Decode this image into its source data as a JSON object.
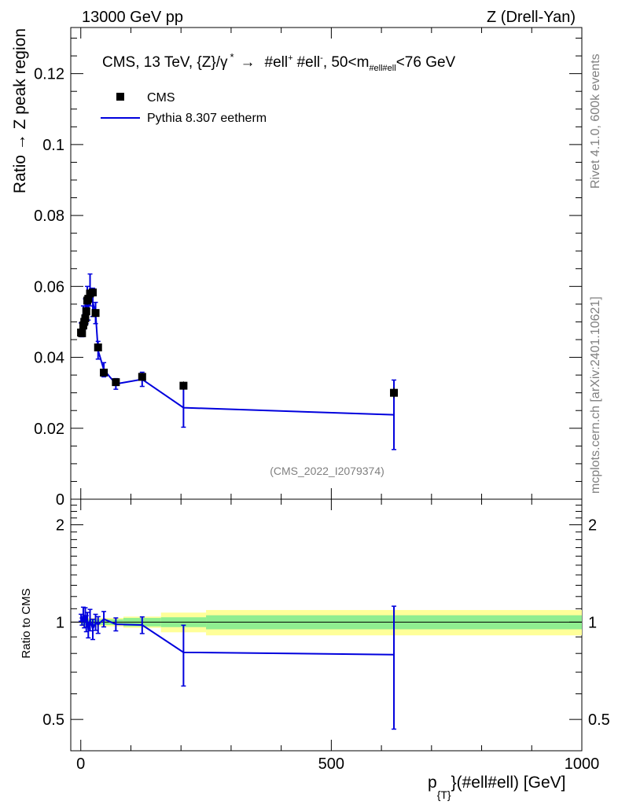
{
  "header": {
    "left": "13000 GeV pp",
    "right": "Z (Drell-Yan)"
  },
  "side": {
    "rivet": "Rivet 4.1.0,  600k events",
    "site": "mcplots.cern.ch [arXiv:2401.10621]"
  },
  "chart_data": {
    "type": "scatter",
    "title": "CMS, 13 TeV, {Z}/γ*  →  #ell⁺ #ell⁻,  50<m#ell#ell<76 GeV",
    "title_parts": {
      "main": "CMS, 13 TeV, {Z}/γ",
      "star": "*",
      "arrow": "→",
      "l1": "#ell",
      "plus": "+",
      "l2": "#ell",
      "minus": "-",
      "range_a": ",  50<m",
      "range_sub": "#ell#ell",
      "range_b": "<76 GeV"
    },
    "analysis_id": "(CMS_2022_I2079374)",
    "xlabel": {
      "main": "p",
      "sub": "{T}",
      "rest": "}(#ell#ell) [GeV]"
    },
    "ylabel_top": "Ratio → Z peak region",
    "ylabel_bottom": "Ratio to CMS",
    "xlim": [
      -20,
      1000
    ],
    "ylim_top": [
      0,
      0.133
    ],
    "ylim_ratio": [
      0.4,
      2.4
    ],
    "xticks": [
      0,
      500,
      1000
    ],
    "xtick_labels": [
      "0",
      "500",
      "1000"
    ],
    "yticks_top": [
      0,
      0.02,
      0.04,
      0.06,
      0.08,
      0.1,
      0.12
    ],
    "ytick_labels_top": [
      "0",
      "0.02",
      "0.04",
      "0.06",
      "0.08",
      "0.1",
      "0.12"
    ],
    "yticks_ratio": [
      0.5,
      1,
      2
    ],
    "ytick_labels_ratio": [
      "0.5",
      "1",
      "2"
    ],
    "legend": [
      {
        "label": "CMS",
        "marker": "square",
        "color": "#000000"
      },
      {
        "label": "Pythia 8.307 eetherm",
        "marker": "line",
        "color": "#0000dd"
      }
    ],
    "data_series": {
      "name": "CMS",
      "points": [
        {
          "x": 0.5,
          "xlo": 0,
          "xhi": 1,
          "y": 0.047,
          "err": 0.001
        },
        {
          "x": 2.5,
          "xlo": 1,
          "xhi": 4,
          "y": 0.0468,
          "err": 0.001
        },
        {
          "x": 5,
          "xlo": 4,
          "xhi": 6,
          "y": 0.049,
          "err": 0.001
        },
        {
          "x": 7,
          "xlo": 6,
          "xhi": 8,
          "y": 0.05,
          "err": 0.001
        },
        {
          "x": 9,
          "xlo": 8,
          "xhi": 10,
          "y": 0.051,
          "err": 0.0012
        },
        {
          "x": 11,
          "xlo": 10,
          "xhi": 12,
          "y": 0.053,
          "err": 0.0012
        },
        {
          "x": 13,
          "xlo": 12,
          "xhi": 14,
          "y": 0.056,
          "err": 0.0012
        },
        {
          "x": 15,
          "xlo": 14,
          "xhi": 16,
          "y": 0.0565,
          "err": 0.0012
        },
        {
          "x": 18.5,
          "xlo": 16,
          "xhi": 21,
          "y": 0.058,
          "err": 0.0012
        },
        {
          "x": 24,
          "xlo": 21,
          "xhi": 27,
          "y": 0.0583,
          "err": 0.0012
        },
        {
          "x": 29.5,
          "xlo": 27,
          "xhi": 32,
          "y": 0.0525,
          "err": 0.0012
        },
        {
          "x": 34.5,
          "xlo": 32,
          "xhi": 37,
          "y": 0.0428,
          "err": 0.001
        },
        {
          "x": 46,
          "xlo": 37,
          "xhi": 55,
          "y": 0.0357,
          "err": 0.0008
        },
        {
          "x": 70,
          "xlo": 55,
          "xhi": 85,
          "y": 0.033,
          "err": 0.0008
        },
        {
          "x": 122.5,
          "xlo": 85,
          "xhi": 160,
          "y": 0.0345,
          "err": 0.001
        },
        {
          "x": 205,
          "xlo": 160,
          "xhi": 250,
          "y": 0.032,
          "err": 0.0012
        },
        {
          "x": 625,
          "xlo": 250,
          "xhi": 1000,
          "y": 0.03,
          "err": 0.0015
        }
      ]
    },
    "mc_series": {
      "name": "Pythia 8.307 eetherm",
      "color": "#0000dd",
      "points": [
        {
          "x": 0.5,
          "y": 0.0485,
          "err": 0.0012
        },
        {
          "x": 2.5,
          "y": 0.047,
          "err": 0.0012
        },
        {
          "x": 5,
          "y": 0.052,
          "err": 0.0025
        },
        {
          "x": 7,
          "y": 0.05,
          "err": 0.002
        },
        {
          "x": 9,
          "y": 0.054,
          "err": 0.0025
        },
        {
          "x": 11,
          "y": 0.0525,
          "err": 0.003
        },
        {
          "x": 13,
          "y": 0.057,
          "err": 0.003
        },
        {
          "x": 15,
          "y": 0.0535,
          "err": 0.003
        },
        {
          "x": 18.5,
          "y": 0.059,
          "err": 0.0045
        },
        {
          "x": 24,
          "y": 0.0555,
          "err": 0.004
        },
        {
          "x": 29.5,
          "y": 0.0525,
          "err": 0.003
        },
        {
          "x": 34.5,
          "y": 0.042,
          "err": 0.0025
        },
        {
          "x": 46,
          "y": 0.0365,
          "err": 0.002
        },
        {
          "x": 70,
          "y": 0.0325,
          "err": 0.0015
        },
        {
          "x": 122.5,
          "y": 0.0338,
          "err": 0.002
        },
        {
          "x": 205,
          "y": 0.0258,
          "err": 0.0055
        },
        {
          "x": 625,
          "y": 0.0238,
          "err": 0.0098
        }
      ]
    },
    "ratio_bands": [
      {
        "xlo": 0,
        "xhi": 85,
        "inner": 0.02,
        "outer": 0.03
      },
      {
        "xlo": 85,
        "xhi": 160,
        "inner": 0.03,
        "outer": 0.04
      },
      {
        "xlo": 160,
        "xhi": 250,
        "inner": 0.035,
        "outer": 0.07
      },
      {
        "xlo": 250,
        "xhi": 1000,
        "inner": 0.05,
        "outer": 0.09
      }
    ]
  },
  "colors": {
    "mc": "#0000dd",
    "data": "#000000",
    "band_inner": "#90ee90",
    "band_outer": "#ffff99",
    "grey_text": "#808080"
  }
}
